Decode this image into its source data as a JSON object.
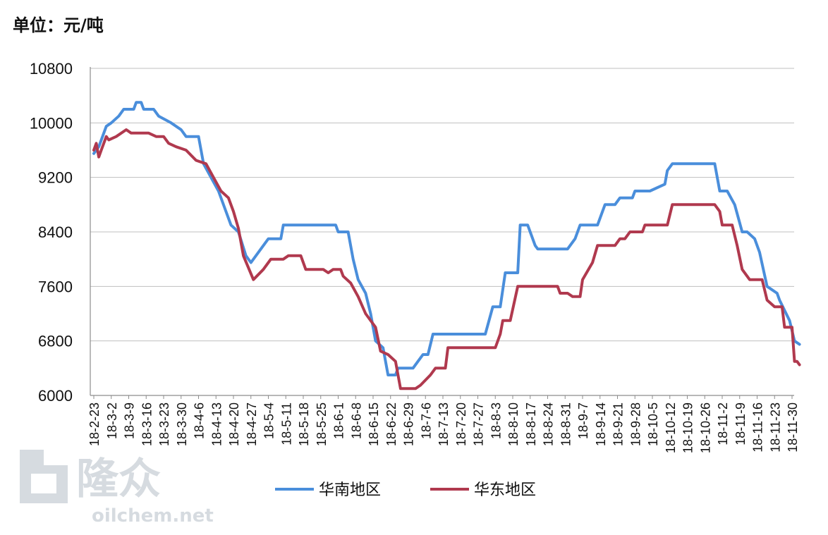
{
  "unit_label": "单位：元/吨",
  "watermark": {
    "brand": "隆众",
    "url": "oilchem.net"
  },
  "colors": {
    "south": "#4a8edb",
    "east": "#b0394e",
    "grid": "#bfbfbf",
    "axis": "#8c8c8c",
    "watermark": "#c9d0d6"
  },
  "chart_data": {
    "type": "line",
    "title": "",
    "ylabel": "单位：元/吨",
    "ylim": [
      6000,
      10800
    ],
    "yticks": [
      6000,
      6800,
      7600,
      8400,
      9200,
      10000,
      10800
    ],
    "grid": true,
    "legend_position": "bottom",
    "x_ticks": [
      "18-2-23",
      "18-3-2",
      "18-3-9",
      "18-3-16",
      "18-3-23",
      "18-3-30",
      "18-4-6",
      "18-4-13",
      "18-4-20",
      "18-4-27",
      "18-5-4",
      "18-5-11",
      "18-5-18",
      "18-5-25",
      "18-6-1",
      "18-6-8",
      "18-6-15",
      "18-6-22",
      "18-6-29",
      "18-7-6",
      "18-7-13",
      "18-7-20",
      "18-7-27",
      "18-8-3",
      "18-8-10",
      "18-8-17",
      "18-8-24",
      "18-8-31",
      "18-9-7",
      "18-9-14",
      "18-9-21",
      "18-9-28",
      "18-10-5",
      "18-10-12",
      "18-10-19",
      "18-10-26",
      "18-11-2",
      "18-11-9",
      "18-11-16",
      "18-11-23",
      "18-11-30"
    ],
    "series": [
      {
        "name": "华南地区",
        "points": [
          [
            "18-2-23",
            9550
          ],
          [
            "18-2-25",
            9650
          ],
          [
            "18-2-28",
            9950
          ],
          [
            "18-3-2",
            10000
          ],
          [
            "18-3-5",
            10100
          ],
          [
            "18-3-7",
            10200
          ],
          [
            "18-3-11",
            10200
          ],
          [
            "18-3-12",
            10300
          ],
          [
            "18-3-14",
            10300
          ],
          [
            "18-3-15",
            10200
          ],
          [
            "18-3-19",
            10200
          ],
          [
            "18-3-21",
            10100
          ],
          [
            "18-3-26",
            10000
          ],
          [
            "18-3-30",
            9900
          ],
          [
            "18-4-1",
            9800
          ],
          [
            "18-4-6",
            9800
          ],
          [
            "18-4-8",
            9400
          ],
          [
            "18-4-11",
            9200
          ],
          [
            "18-4-14",
            9000
          ],
          [
            "18-4-17",
            8700
          ],
          [
            "18-4-19",
            8500
          ],
          [
            "18-4-22",
            8400
          ],
          [
            "18-4-25",
            8050
          ],
          [
            "18-4-27",
            7950
          ],
          [
            "18-5-1",
            8150
          ],
          [
            "18-5-4",
            8300
          ],
          [
            "18-5-9",
            8300
          ],
          [
            "18-5-10",
            8500
          ],
          [
            "18-5-31",
            8500
          ],
          [
            "18-6-1",
            8400
          ],
          [
            "18-6-5",
            8400
          ],
          [
            "18-6-7",
            8000
          ],
          [
            "18-6-9",
            7700
          ],
          [
            "18-6-12",
            7500
          ],
          [
            "18-6-14",
            7200
          ],
          [
            "18-6-16",
            6800
          ],
          [
            "18-6-19",
            6700
          ],
          [
            "18-6-21",
            6300
          ],
          [
            "18-6-24",
            6300
          ],
          [
            "18-6-25",
            6400
          ],
          [
            "18-7-1",
            6400
          ],
          [
            "18-7-3",
            6500
          ],
          [
            "18-7-5",
            6600
          ],
          [
            "18-7-7",
            6600
          ],
          [
            "18-7-9",
            6900
          ],
          [
            "18-7-30",
            6900
          ],
          [
            "18-8-2",
            7300
          ],
          [
            "18-8-5",
            7300
          ],
          [
            "18-8-7",
            7800
          ],
          [
            "18-8-12",
            7800
          ],
          [
            "18-8-13",
            8500
          ],
          [
            "18-8-16",
            8500
          ],
          [
            "18-8-19",
            8200
          ],
          [
            "18-8-20",
            8150
          ],
          [
            "18-9-1",
            8150
          ],
          [
            "18-9-4",
            8300
          ],
          [
            "18-9-6",
            8500
          ],
          [
            "18-9-13",
            8500
          ],
          [
            "18-9-16",
            8800
          ],
          [
            "18-9-20",
            8800
          ],
          [
            "18-9-22",
            8900
          ],
          [
            "18-9-27",
            8900
          ],
          [
            "18-9-28",
            9000
          ],
          [
            "18-10-4",
            9000
          ],
          [
            "18-10-10",
            9100
          ],
          [
            "18-10-11",
            9300
          ],
          [
            "18-10-13",
            9400
          ],
          [
            "18-10-30",
            9400
          ],
          [
            "18-11-1",
            9000
          ],
          [
            "18-11-4",
            9000
          ],
          [
            "18-11-7",
            8800
          ],
          [
            "18-11-10",
            8400
          ],
          [
            "18-11-12",
            8400
          ],
          [
            "18-11-15",
            8300
          ],
          [
            "18-11-17",
            8100
          ],
          [
            "18-11-20",
            7600
          ],
          [
            "18-11-24",
            7500
          ],
          [
            "18-11-25",
            7400
          ],
          [
            "18-11-29",
            7100
          ],
          [
            "18-12-1",
            6800
          ],
          [
            "18-12-3",
            6750
          ]
        ]
      },
      {
        "name": "华东地区",
        "points": [
          [
            "18-2-23",
            9600
          ],
          [
            "18-2-24",
            9700
          ],
          [
            "18-2-25",
            9500
          ],
          [
            "18-2-26",
            9600
          ],
          [
            "18-2-28",
            9800
          ],
          [
            "18-3-1",
            9750
          ],
          [
            "18-3-4",
            9800
          ],
          [
            "18-3-8",
            9900
          ],
          [
            "18-3-10",
            9850
          ],
          [
            "18-3-17",
            9850
          ],
          [
            "18-3-20",
            9800
          ],
          [
            "18-3-23",
            9800
          ],
          [
            "18-3-25",
            9700
          ],
          [
            "18-3-28",
            9650
          ],
          [
            "18-4-1",
            9600
          ],
          [
            "18-4-5",
            9450
          ],
          [
            "18-4-9",
            9400
          ],
          [
            "18-4-12",
            9200
          ],
          [
            "18-4-15",
            9000
          ],
          [
            "18-4-18",
            8900
          ],
          [
            "18-4-20",
            8700
          ],
          [
            "18-4-22",
            8450
          ],
          [
            "18-4-24",
            8050
          ],
          [
            "18-4-28",
            7700
          ],
          [
            "18-5-2",
            7850
          ],
          [
            "18-5-5",
            8000
          ],
          [
            "18-5-10",
            8000
          ],
          [
            "18-5-12",
            8050
          ],
          [
            "18-5-17",
            8050
          ],
          [
            "18-5-19",
            7850
          ],
          [
            "18-5-26",
            7850
          ],
          [
            "18-5-28",
            7800
          ],
          [
            "18-5-30",
            7850
          ],
          [
            "18-6-2",
            7850
          ],
          [
            "18-6-3",
            7750
          ],
          [
            "18-6-6",
            7650
          ],
          [
            "18-6-9",
            7450
          ],
          [
            "18-6-12",
            7200
          ],
          [
            "18-6-16",
            7000
          ],
          [
            "18-6-18",
            6650
          ],
          [
            "18-6-21",
            6600
          ],
          [
            "18-6-24",
            6500
          ],
          [
            "18-6-26",
            6100
          ],
          [
            "18-7-2",
            6100
          ],
          [
            "18-7-4",
            6150
          ],
          [
            "18-7-8",
            6300
          ],
          [
            "18-7-10",
            6400
          ],
          [
            "18-7-14",
            6400
          ],
          [
            "18-7-15",
            6700
          ],
          [
            "18-8-3",
            6700
          ],
          [
            "18-8-5",
            6900
          ],
          [
            "18-8-6",
            7100
          ],
          [
            "18-8-9",
            7100
          ],
          [
            "18-8-12",
            7600
          ],
          [
            "18-8-28",
            7600
          ],
          [
            "18-8-29",
            7500
          ],
          [
            "18-9-1",
            7500
          ],
          [
            "18-9-3",
            7450
          ],
          [
            "18-9-6",
            7450
          ],
          [
            "18-9-7",
            7700
          ],
          [
            "18-9-11",
            7950
          ],
          [
            "18-9-13",
            8200
          ],
          [
            "18-9-20",
            8200
          ],
          [
            "18-9-22",
            8300
          ],
          [
            "18-9-24",
            8300
          ],
          [
            "18-9-26",
            8400
          ],
          [
            "18-10-1",
            8400
          ],
          [
            "18-10-2",
            8500
          ],
          [
            "18-10-11",
            8500
          ],
          [
            "18-10-13",
            8800
          ],
          [
            "18-10-30",
            8800
          ],
          [
            "18-11-1",
            8700
          ],
          [
            "18-11-2",
            8500
          ],
          [
            "18-11-6",
            8500
          ],
          [
            "18-11-8",
            8200
          ],
          [
            "18-11-10",
            7850
          ],
          [
            "18-11-13",
            7700
          ],
          [
            "18-11-18",
            7700
          ],
          [
            "18-11-20",
            7400
          ],
          [
            "18-11-23",
            7300
          ],
          [
            "18-11-26",
            7300
          ],
          [
            "18-11-27",
            7000
          ],
          [
            "18-11-30",
            7000
          ],
          [
            "18-12-1",
            6500
          ],
          [
            "18-12-2",
            6500
          ],
          [
            "18-12-3",
            6450
          ]
        ]
      }
    ]
  }
}
